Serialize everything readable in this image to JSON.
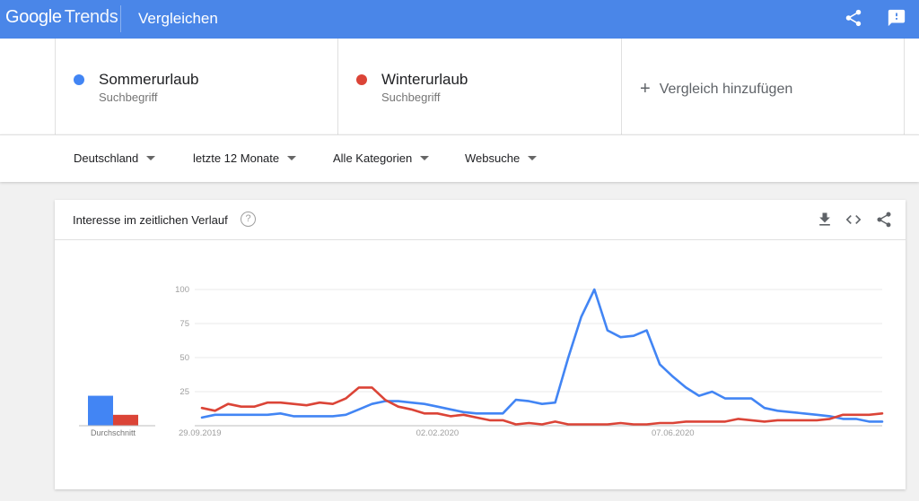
{
  "header": {
    "logo_google": "Google",
    "logo_trends": "Trends",
    "title": "Vergleichen",
    "share_icon": "share-icon",
    "feedback_icon": "feedback-icon"
  },
  "terms": [
    {
      "name": "Sommerurlaub",
      "subtitle": "Suchbegriff",
      "color": "#4285f4"
    },
    {
      "name": "Winterurlaub",
      "subtitle": "Suchbegriff",
      "color": "#db4437"
    }
  ],
  "add_compare": {
    "plus": "+",
    "label": "Vergleich hinzufügen"
  },
  "filters": {
    "region": "Deutschland",
    "period": "letzte 12 Monate",
    "category": "Alle Kategorien",
    "search_type": "Websuche"
  },
  "widget": {
    "title": "Interesse im zeitlichen Verlauf",
    "help": "?",
    "download_icon": "download-icon",
    "embed_icon": "embed-icon",
    "share_icon": "share-icon"
  },
  "chart_data": {
    "type": "line",
    "title": "Interesse im zeitlichen Verlauf",
    "xlabel": "",
    "ylabel": "",
    "ylim": [
      0,
      100
    ],
    "yticks": [
      25,
      50,
      75,
      100
    ],
    "grid": true,
    "x_tick_labels": [
      "29.09.2019",
      "02.02.2020",
      "07.06.2020"
    ],
    "x_tick_index": [
      0,
      18,
      36
    ],
    "x_count": 53,
    "series": [
      {
        "color": "#4285f4",
        "values": [
          6,
          8,
          8,
          8,
          8,
          8,
          9,
          7,
          7,
          7,
          7,
          8,
          12,
          16,
          18,
          18,
          17,
          16,
          14,
          12,
          10,
          9,
          9,
          9,
          19,
          18,
          16,
          17,
          50,
          80,
          100,
          70,
          65,
          66,
          70,
          45,
          36,
          28,
          22,
          25,
          20,
          20,
          20,
          13,
          11,
          10,
          9,
          8,
          7,
          5,
          5,
          3,
          3
        ]
      },
      {
        "color": "#db4437",
        "values": [
          13,
          11,
          16,
          14,
          14,
          17,
          17,
          16,
          15,
          17,
          16,
          20,
          28,
          28,
          19,
          14,
          12,
          9,
          9,
          7,
          8,
          6,
          4,
          4,
          1,
          2,
          1,
          3,
          1,
          1,
          1,
          1,
          2,
          1,
          1,
          2,
          2,
          3,
          3,
          3,
          3,
          5,
          4,
          3,
          4,
          4,
          4,
          4,
          5,
          8,
          8,
          8,
          9
        ]
      }
    ],
    "average": {
      "label": "Durchschnitt",
      "values": [
        22,
        8
      ]
    }
  }
}
